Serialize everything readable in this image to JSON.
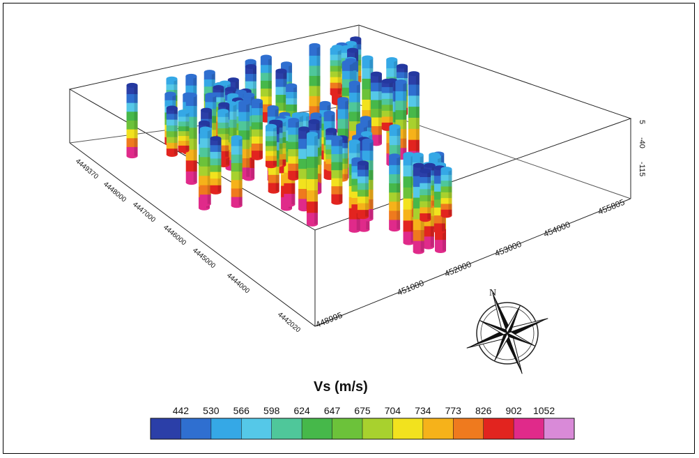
{
  "chart_data": {
    "type": "3d-borehole-columns",
    "title": "",
    "colorbar": {
      "title": "Vs (m/s)",
      "tick_labels": [
        "442",
        "530",
        "566",
        "598",
        "624",
        "647",
        "675",
        "704",
        "734",
        "773",
        "826",
        "902",
        "1052"
      ],
      "colors": [
        "#2b3fa8",
        "#2f6fd0",
        "#35a8e6",
        "#55c8e8",
        "#4fc79a",
        "#46b84a",
        "#6cc23a",
        "#a8d12e",
        "#f2e21e",
        "#f6b21a",
        "#ef7a1e",
        "#e2241f",
        "#e02a8a",
        "#d98ad8"
      ]
    },
    "x_axis": {
      "ticks": [
        "448995",
        "451000",
        "452000",
        "453000",
        "454000",
        "455805"
      ],
      "range": [
        448995,
        455805
      ]
    },
    "y_axis": {
      "ticks": [
        "4442020",
        "4444000",
        "4445000",
        "4446000",
        "4447000",
        "4448000",
        "4449370"
      ],
      "range": [
        4442020,
        4449370
      ]
    },
    "z_axis": {
      "ticks": [
        "5",
        "-40",
        "-115"
      ],
      "range": [
        -115,
        5
      ]
    },
    "compass": {
      "north_label": "N"
    }
  }
}
